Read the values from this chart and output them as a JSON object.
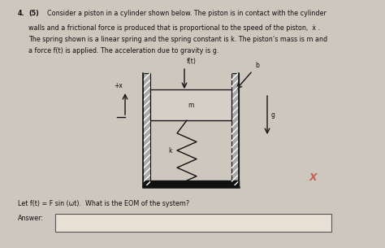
{
  "bg_color": "#cdc7be",
  "title_number": "4.",
  "title_points": "(5)",
  "line1": "Consider a piston in a cylinder shown below. The piston is in contact with the cylinder",
  "line2": "walls and a frictional force is produced that is proportional to the speed of the piston,  ẋ .",
  "line3": "The spring shown is a linear spring and the spring constant is k. The piston’s mass is m and",
  "line4": "a force f(t) is applied. The acceleration due to gravity is g.",
  "footer_line": "Let f(t) = F sin (ωt).  What is the EOM of the system?",
  "answer_label": "Answer:",
  "text_color": "#111111",
  "answer_box_color": "#e8e0d5",
  "red_x_color": "#c0392b",
  "fs_main": 5.8,
  "fs_label": 5.5,
  "fs_title": 6.0,
  "fs_redx": 9
}
